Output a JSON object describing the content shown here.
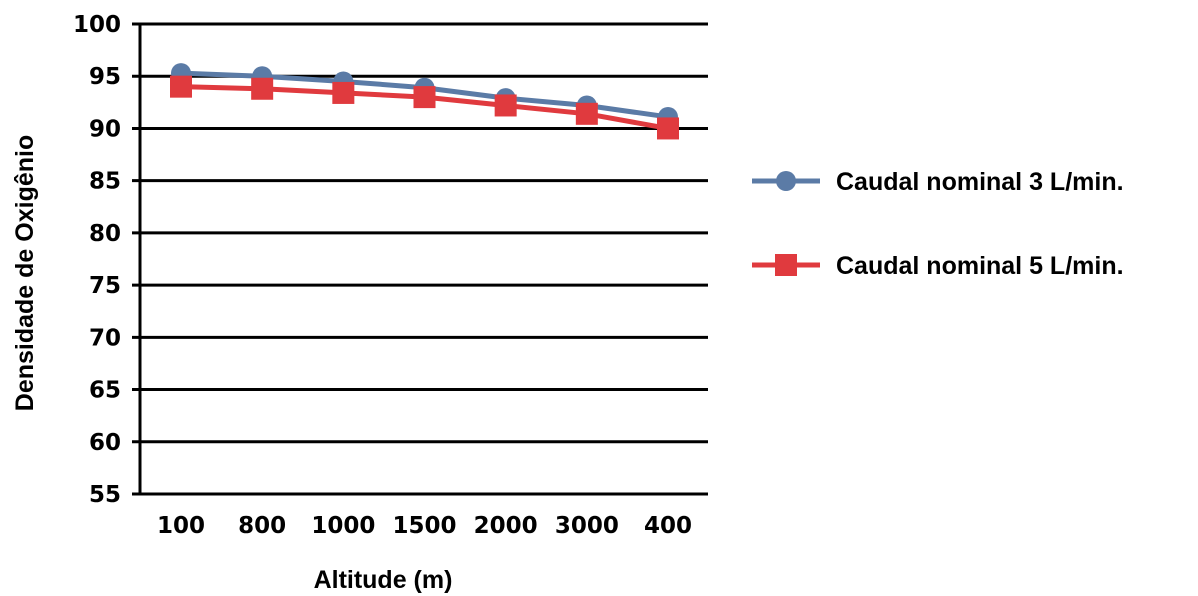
{
  "chart_data": {
    "type": "line",
    "categories": [
      "100",
      "800",
      "1000",
      "1500",
      "2000",
      "3000",
      "400"
    ],
    "series": [
      {
        "name": "Caudal nominal  3 L/min.",
        "values": [
          95.3,
          95.0,
          94.5,
          93.9,
          92.9,
          92.2,
          91.1
        ],
        "color": "#5b7ba6",
        "marker": "circle"
      },
      {
        "name": "Caudal nominal 5 L/min.",
        "values": [
          94.0,
          93.8,
          93.4,
          93.0,
          92.2,
          91.4,
          90.0
        ],
        "color": "#e03a3e",
        "marker": "square"
      }
    ],
    "xlabel": "Altitude (m)",
    "ylabel": "Densidade de Oxigênio",
    "ylim": [
      55,
      100
    ],
    "yticks": [
      "55",
      "60",
      "65",
      "70",
      "75",
      "80",
      "85",
      "90",
      "95",
      "100"
    ],
    "grid": true,
    "legend_position": "right"
  }
}
